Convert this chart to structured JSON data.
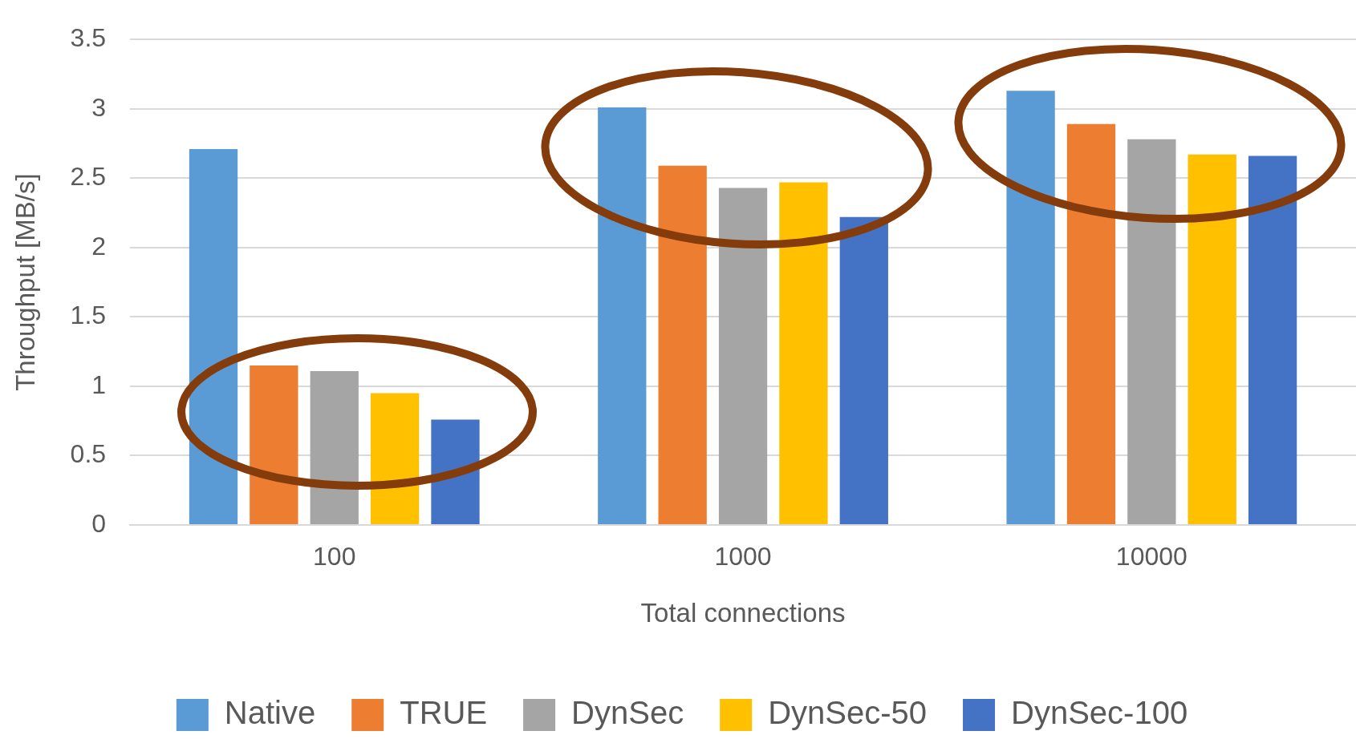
{
  "chart_data": {
    "type": "bar",
    "xlabel": "Total connections",
    "ylabel": "Throughput [MB/s]",
    "categories": [
      "100",
      "1000",
      "10000"
    ],
    "series": [
      {
        "name": "Native",
        "color": "#5b9bd5",
        "values": [
          2.71,
          3.01,
          3.13
        ]
      },
      {
        "name": "TRUE",
        "color": "#ed7d31",
        "values": [
          1.15,
          2.59,
          2.89
        ]
      },
      {
        "name": "DynSec",
        "color": "#a5a5a5",
        "values": [
          1.11,
          2.43,
          2.78
        ]
      },
      {
        "name": "DynSec-50",
        "color": "#ffc000",
        "values": [
          0.95,
          2.47,
          2.67
        ]
      },
      {
        "name": "DynSec-100",
        "color": "#4472c4",
        "values": [
          0.76,
          2.22,
          2.66
        ]
      }
    ],
    "ylim": [
      0,
      3.5
    ],
    "yticks": [
      0,
      0.5,
      1,
      1.5,
      2,
      2.5,
      3,
      3.5
    ],
    "grid": "y",
    "legend": "bottom"
  }
}
